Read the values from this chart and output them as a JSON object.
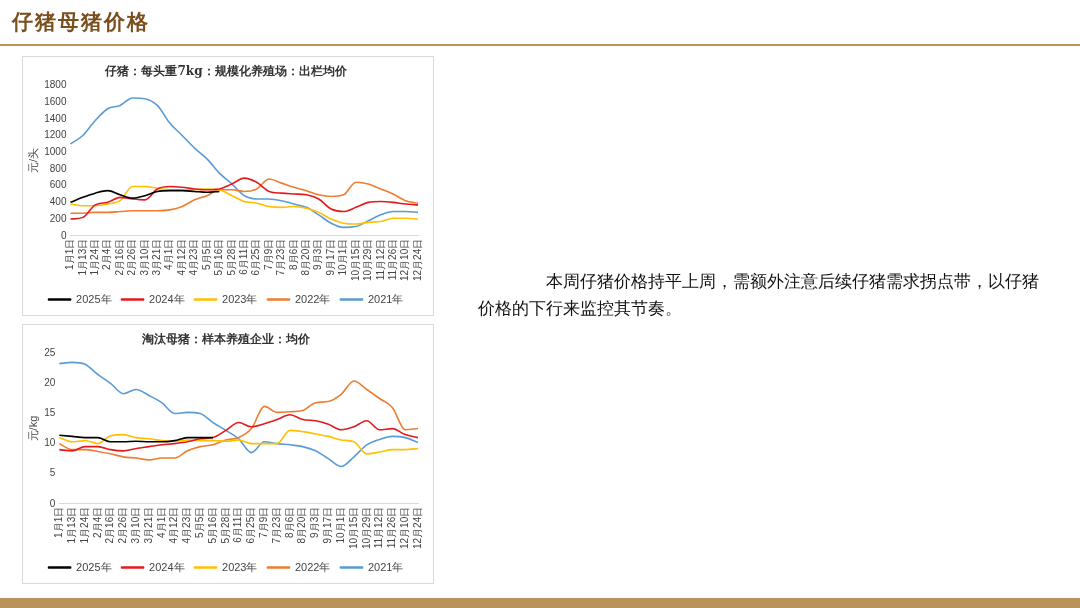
{
  "chart_data": [
    {
      "type": "line",
      "title": "仔猪：每头重7kg：规模化养殖场：出栏均价",
      "ylabel": "元/头",
      "categories": [
        "1月1日",
        "1月13日",
        "1月24日",
        "2月4日",
        "2月16日",
        "2月26日",
        "3月10日",
        "3月21日",
        "4月1日",
        "4月12日",
        "4月23日",
        "5月5日",
        "5月16日",
        "5月28日",
        "6月11日",
        "6月25日",
        "7月9日",
        "7月23日",
        "8月6日",
        "8月20日",
        "9月3日",
        "9月17日",
        "10月1日",
        "10月15日",
        "10月29日",
        "11月12日",
        "11月26日",
        "12月10日",
        "12月24日"
      ],
      "ylim": [
        0,
        1800
      ],
      "yticks": [
        0,
        200,
        400,
        600,
        800,
        1000,
        1200,
        1400,
        1600,
        1800
      ],
      "grid": false,
      "legend": "bottom",
      "marker": "none",
      "line_style": "solid",
      "series": [
        {
          "name": "2021年",
          "color": "#5b9bd5",
          "values": [
            1100,
            1200,
            1380,
            1520,
            1560,
            1650,
            1640,
            1560,
            1350,
            1200,
            1050,
            920,
            750,
            620,
            480,
            440,
            440,
            420,
            380,
            340,
            250,
            150,
            100,
            110,
            180,
            250,
            290,
            290,
            280
          ]
        },
        {
          "name": "2022年",
          "color": "#ed7d31",
          "values": [
            270,
            270,
            280,
            280,
            290,
            300,
            300,
            300,
            310,
            350,
            430,
            480,
            550,
            550,
            530,
            560,
            680,
            630,
            580,
            540,
            490,
            470,
            490,
            640,
            620,
            560,
            500,
            420,
            390
          ]
        },
        {
          "name": "2023年",
          "color": "#ffc000",
          "values": [
            380,
            360,
            360,
            380,
            420,
            590,
            590,
            570,
            550,
            550,
            550,
            560,
            550,
            480,
            410,
            390,
            350,
            340,
            350,
            330,
            280,
            200,
            150,
            140,
            160,
            170,
            210,
            210,
            200
          ]
        },
        {
          "name": "2024年",
          "color": "#e31a1c",
          "values": [
            200,
            220,
            370,
            400,
            460,
            440,
            430,
            560,
            590,
            580,
            560,
            550,
            560,
            620,
            690,
            640,
            530,
            510,
            500,
            490,
            440,
            320,
            290,
            340,
            400,
            410,
            400,
            380,
            370
          ]
        },
        {
          "name": "2025年",
          "color": "#000000",
          "values": [
            400,
            460,
            510,
            540,
            490,
            450,
            480,
            530,
            540,
            540,
            530,
            520,
            530,
            null,
            null,
            null,
            null,
            null,
            null,
            null,
            null,
            null,
            null,
            null,
            null,
            null,
            null,
            null,
            null
          ]
        }
      ]
    },
    {
      "type": "line",
      "title": "淘汰母猪：样本养殖企业：均价",
      "ylabel": "元/kg",
      "categories": [
        "1月1日",
        "1月13日",
        "1月24日",
        "2月4日",
        "2月16日",
        "2月26日",
        "3月10日",
        "3月21日",
        "4月1日",
        "4月12日",
        "4月23日",
        "5月5日",
        "5月16日",
        "5月28日",
        "6月11日",
        "6月25日",
        "7月9日",
        "7月23日",
        "8月6日",
        "8月20日",
        "9月3日",
        "9月17日",
        "10月1日",
        "10月15日",
        "10月29日",
        "11月12日",
        "11月26日",
        "12月10日",
        "12月24日"
      ],
      "ylim": [
        0,
        25
      ],
      "yticks": [
        0,
        5,
        10,
        15,
        20,
        25
      ],
      "grid": false,
      "legend": "bottom",
      "marker": "none",
      "line_style": "solid",
      "series": [
        {
          "name": "2021年",
          "color": "#5b9bd5",
          "values": [
            23.3,
            23.5,
            23.2,
            21.5,
            20,
            18.3,
            19,
            18,
            16.8,
            15,
            15.2,
            15,
            13.5,
            12.2,
            10.8,
            8.5,
            10.3,
            10,
            9.8,
            9.5,
            8.8,
            7.5,
            6.2,
            7.8,
            9.8,
            10.7,
            11.2,
            11,
            10.2
          ]
        },
        {
          "name": "2022年",
          "color": "#ed7d31",
          "values": [
            10,
            9,
            9,
            8.7,
            8.3,
            7.8,
            7.6,
            7.3,
            7.6,
            7.6,
            8.8,
            9.5,
            9.8,
            10.6,
            11,
            12.5,
            16.2,
            15.2,
            15.3,
            15.5,
            16.8,
            17,
            18.2,
            20.4,
            19,
            17.5,
            16,
            12.3,
            12.5
          ]
        },
        {
          "name": "2023年",
          "color": "#ffc000",
          "values": [
            11,
            10.3,
            10.5,
            10,
            11.3,
            11.5,
            11,
            10.8,
            10.5,
            10.4,
            10.6,
            10.5,
            10.5,
            10.4,
            10.6,
            10,
            10,
            10,
            12.2,
            12,
            11.6,
            11.2,
            10.6,
            10.3,
            8.3,
            8.6,
            9,
            9,
            9.2
          ]
        },
        {
          "name": "2024年",
          "color": "#e31a1c",
          "values": [
            9,
            8.8,
            9.5,
            9.5,
            9,
            8.8,
            9.2,
            9.5,
            9.8,
            10,
            10.3,
            10.8,
            11,
            12.2,
            13.5,
            12.8,
            13.3,
            14,
            14.8,
            14,
            13.8,
            13.2,
            12.3,
            12.8,
            13.8,
            12.3,
            12.5,
            11.5,
            11
          ]
        },
        {
          "name": "2025年",
          "color": "#000000",
          "values": [
            11.4,
            11.2,
            11,
            11,
            10.3,
            10.3,
            10.4,
            10.3,
            10.3,
            10.5,
            11,
            11,
            11,
            null,
            null,
            null,
            null,
            null,
            null,
            null,
            null,
            null,
            null,
            null,
            null,
            null,
            null,
            null,
            null
          ]
        }
      ]
    },
    {
      "type": "other",
      "title": "仔猪母猪价格",
      "annotations": [
        "本周仔猪价格持平上周，需额外注意后续仔猪需求拐点带，以仔猪价格的下行来监控其节奏。"
      ]
    }
  ]
}
